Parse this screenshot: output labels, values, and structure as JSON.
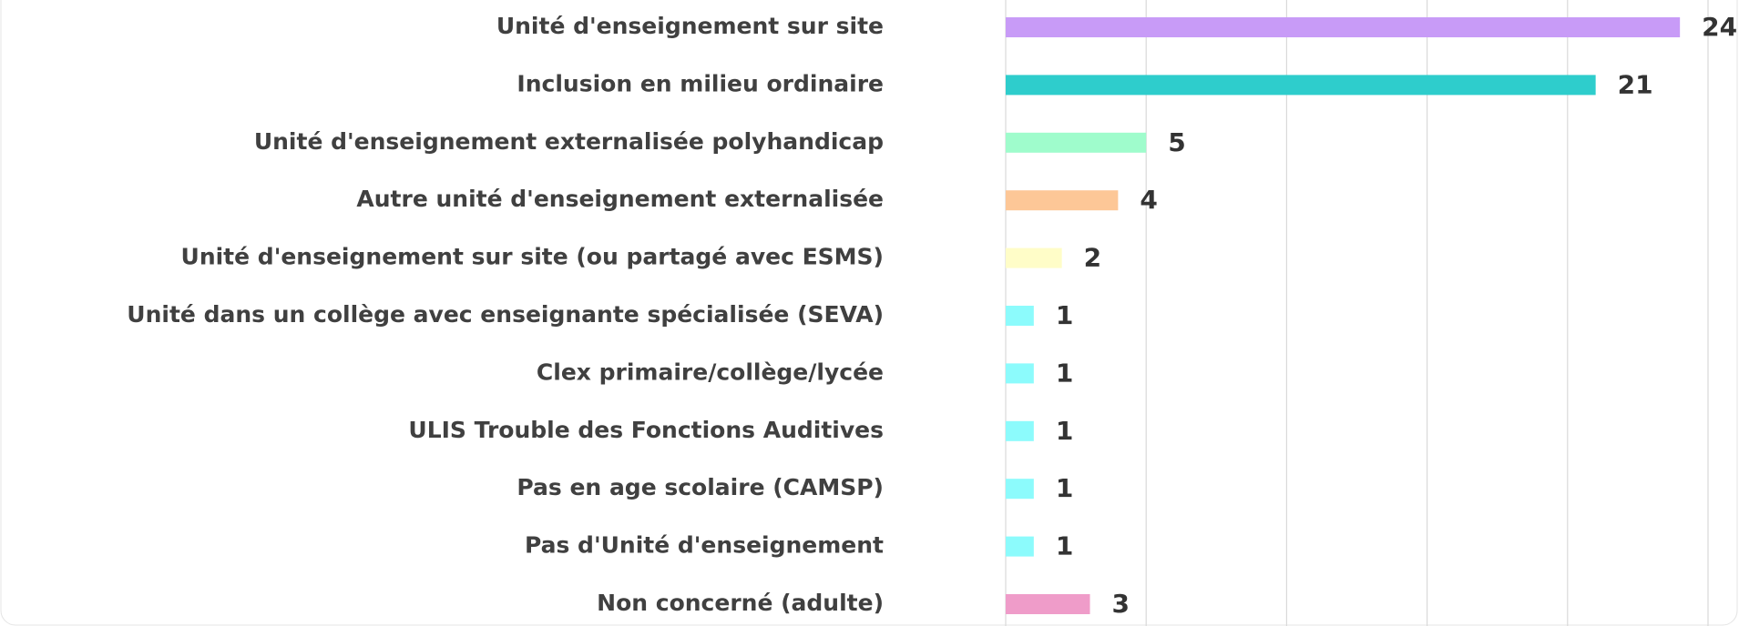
{
  "chart_data": {
    "type": "barh",
    "categories": [
      "Unité d'enseignement sur site",
      "Inclusion en milieu ordinaire",
      "Unité d'enseignement externalisée polyhandicap",
      "Autre unité d'enseignement externalisée",
      "Unité d'enseignement sur site (ou partagé avec ESMS)",
      "Unité dans un collège avec enseignante spécialisée (SEVA)",
      "Clex primaire/collège/lycée",
      "ULIS Trouble des Fonctions Auditives",
      "Pas en age scolaire (CAMSP)",
      "Pas d'Unité d'enseignement",
      "Non concerné (adulte)"
    ],
    "values": [
      24,
      21,
      5,
      4,
      2,
      1,
      1,
      1,
      1,
      1,
      3
    ],
    "colors": [
      "#c89bf7",
      "#2ecdcc",
      "#9ffccc",
      "#fdc797",
      "#fffdc8",
      "#8cfbfc",
      "#8cfbfc",
      "#8cfbfc",
      "#8cfbfc",
      "#8cfbfc",
      "#ef9cc9"
    ],
    "xlim": [
      0,
      25
    ],
    "xticks": [
      0,
      5,
      10,
      15,
      20,
      25
    ],
    "grid": true
  }
}
